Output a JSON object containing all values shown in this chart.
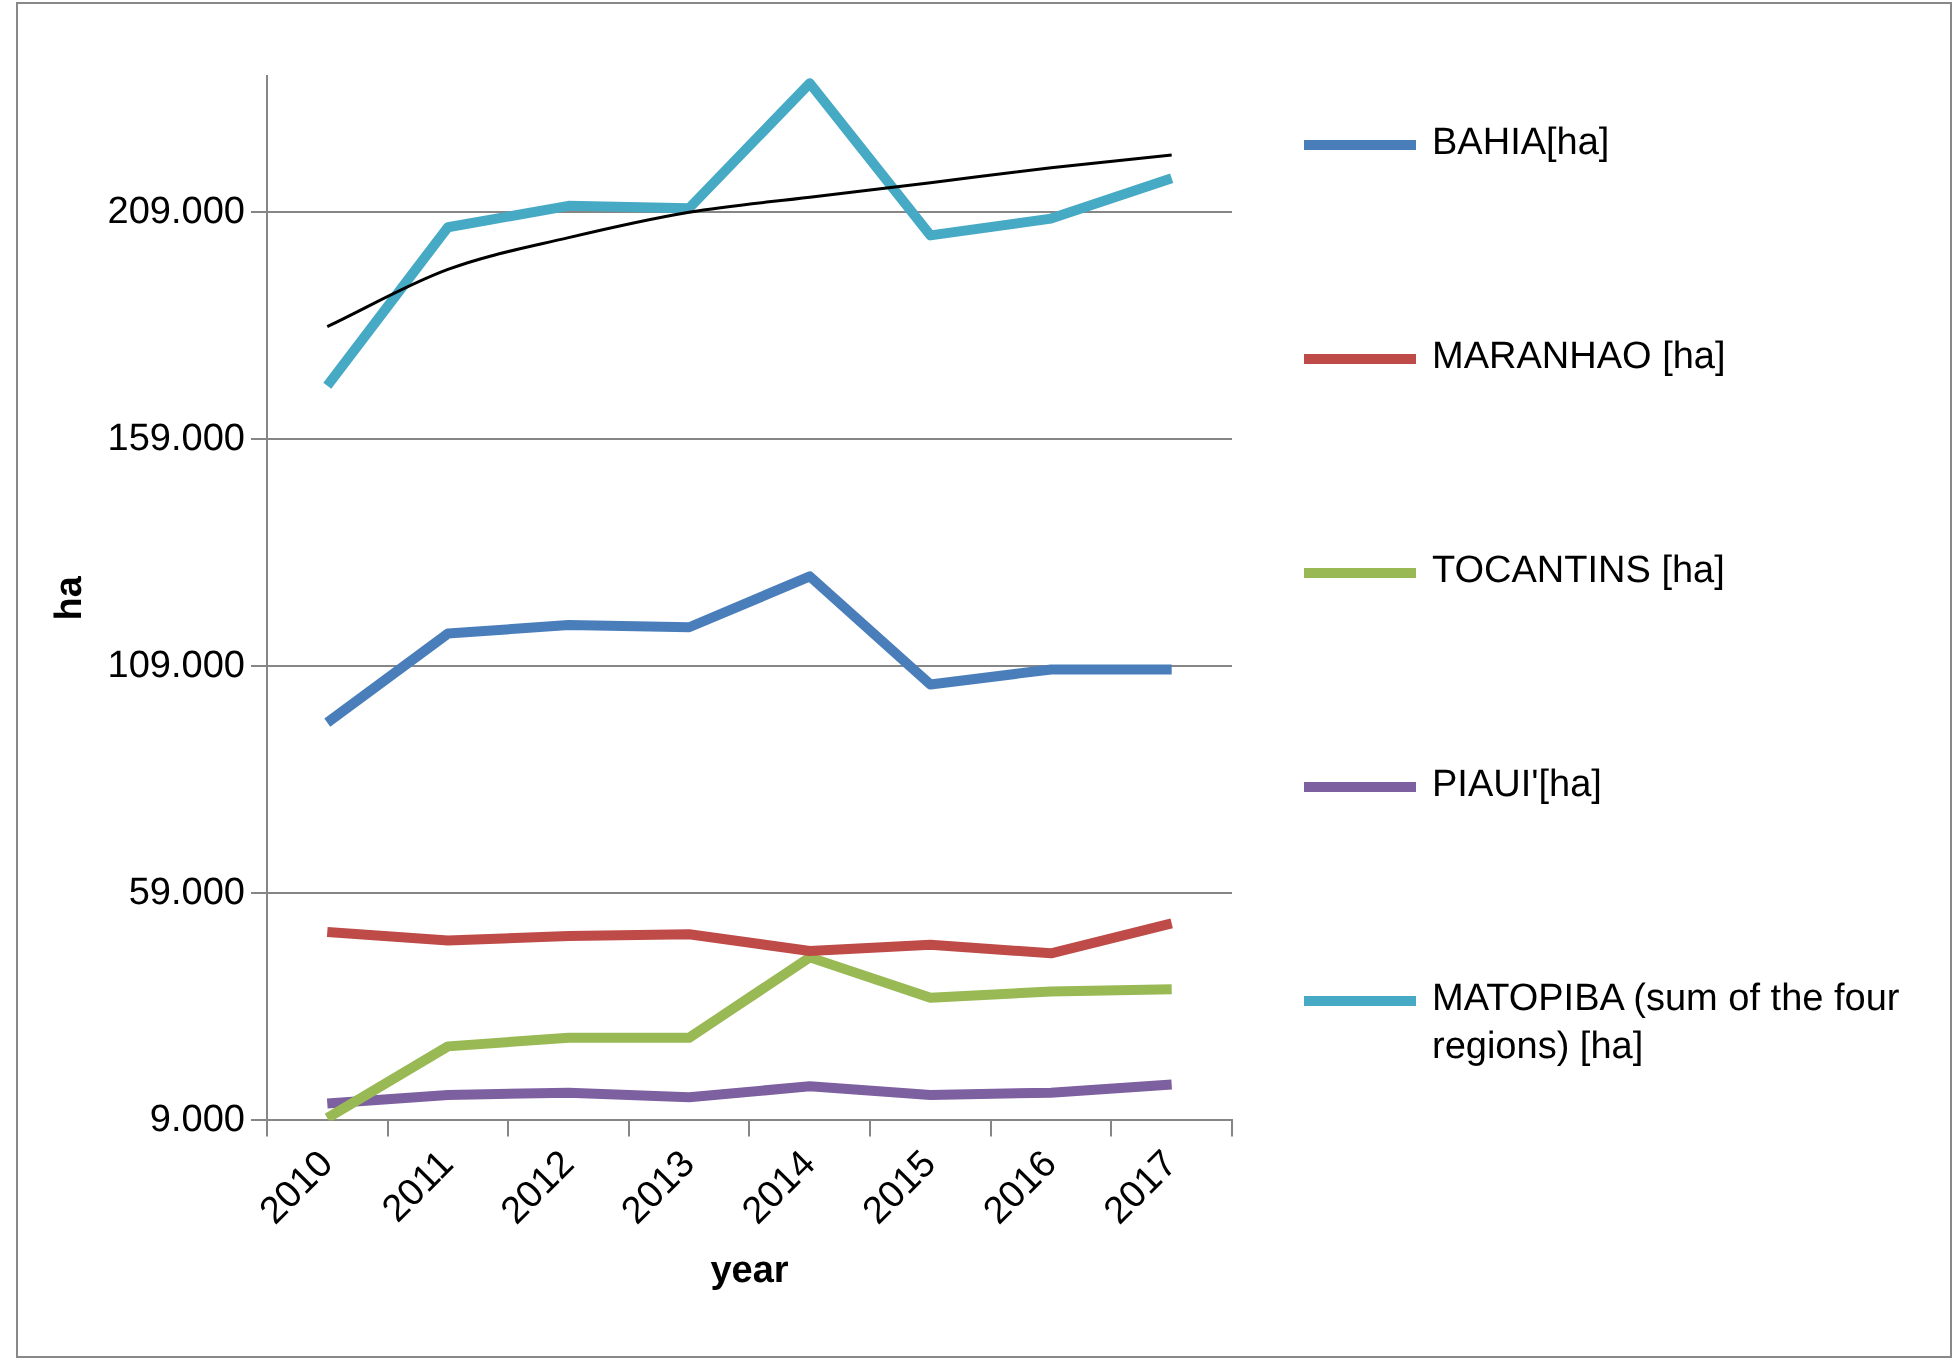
{
  "chart_data": {
    "type": "line",
    "xlabel": "year",
    "ylabel": "ha",
    "categories": [
      "2010",
      "2011",
      "2012",
      "2013",
      "2014",
      "2015",
      "2016",
      "2017"
    ],
    "series": [
      {
        "name": "BAHIA[ha]",
        "color": "#4a7ebb",
        "values": [
          96600,
          116200,
          118100,
          117600,
          128800,
          105000,
          108300,
          108300
        ]
      },
      {
        "name": "MARANHAO [ha]",
        "color": "#be4b48",
        "values": [
          50500,
          48600,
          49600,
          50000,
          46300,
          47700,
          45800,
          52400
        ]
      },
      {
        "name": "TOCANTINS [ha]",
        "color": "#98b954",
        "values": [
          9500,
          25300,
          27200,
          27200,
          44900,
          36000,
          37400,
          37900
        ]
      },
      {
        "name": "PIAUI'[ha]",
        "color": "#7d60a0",
        "values": [
          12700,
          14600,
          15100,
          14100,
          16500,
          14600,
          15100,
          16900
        ]
      },
      {
        "name": "MATOPIBA (sum of the four regions) [ha]",
        "color": "#46aac5",
        "values": [
          170800,
          205700,
          210400,
          209900,
          237400,
          203900,
          207600,
          216500
        ]
      },
      {
        "type": "line",
        "color": "#000000",
        "values": [
          183800,
          196400,
          203400,
          209000,
          212300,
          215500,
          218800,
          221600
        ]
      }
    ],
    "ylim": [
      9000,
      239000
    ],
    "yticks": [
      {
        "value": 9000,
        "label": "9.000"
      },
      {
        "value": 59000,
        "label": "59.000"
      },
      {
        "value": 109000,
        "label": "109.000"
      },
      {
        "value": 159000,
        "label": "159.000"
      },
      {
        "value": 209000,
        "label": "209.000"
      }
    ],
    "grid": "y",
    "legend": "right",
    "marker": "none",
    "line_style": "solid"
  }
}
